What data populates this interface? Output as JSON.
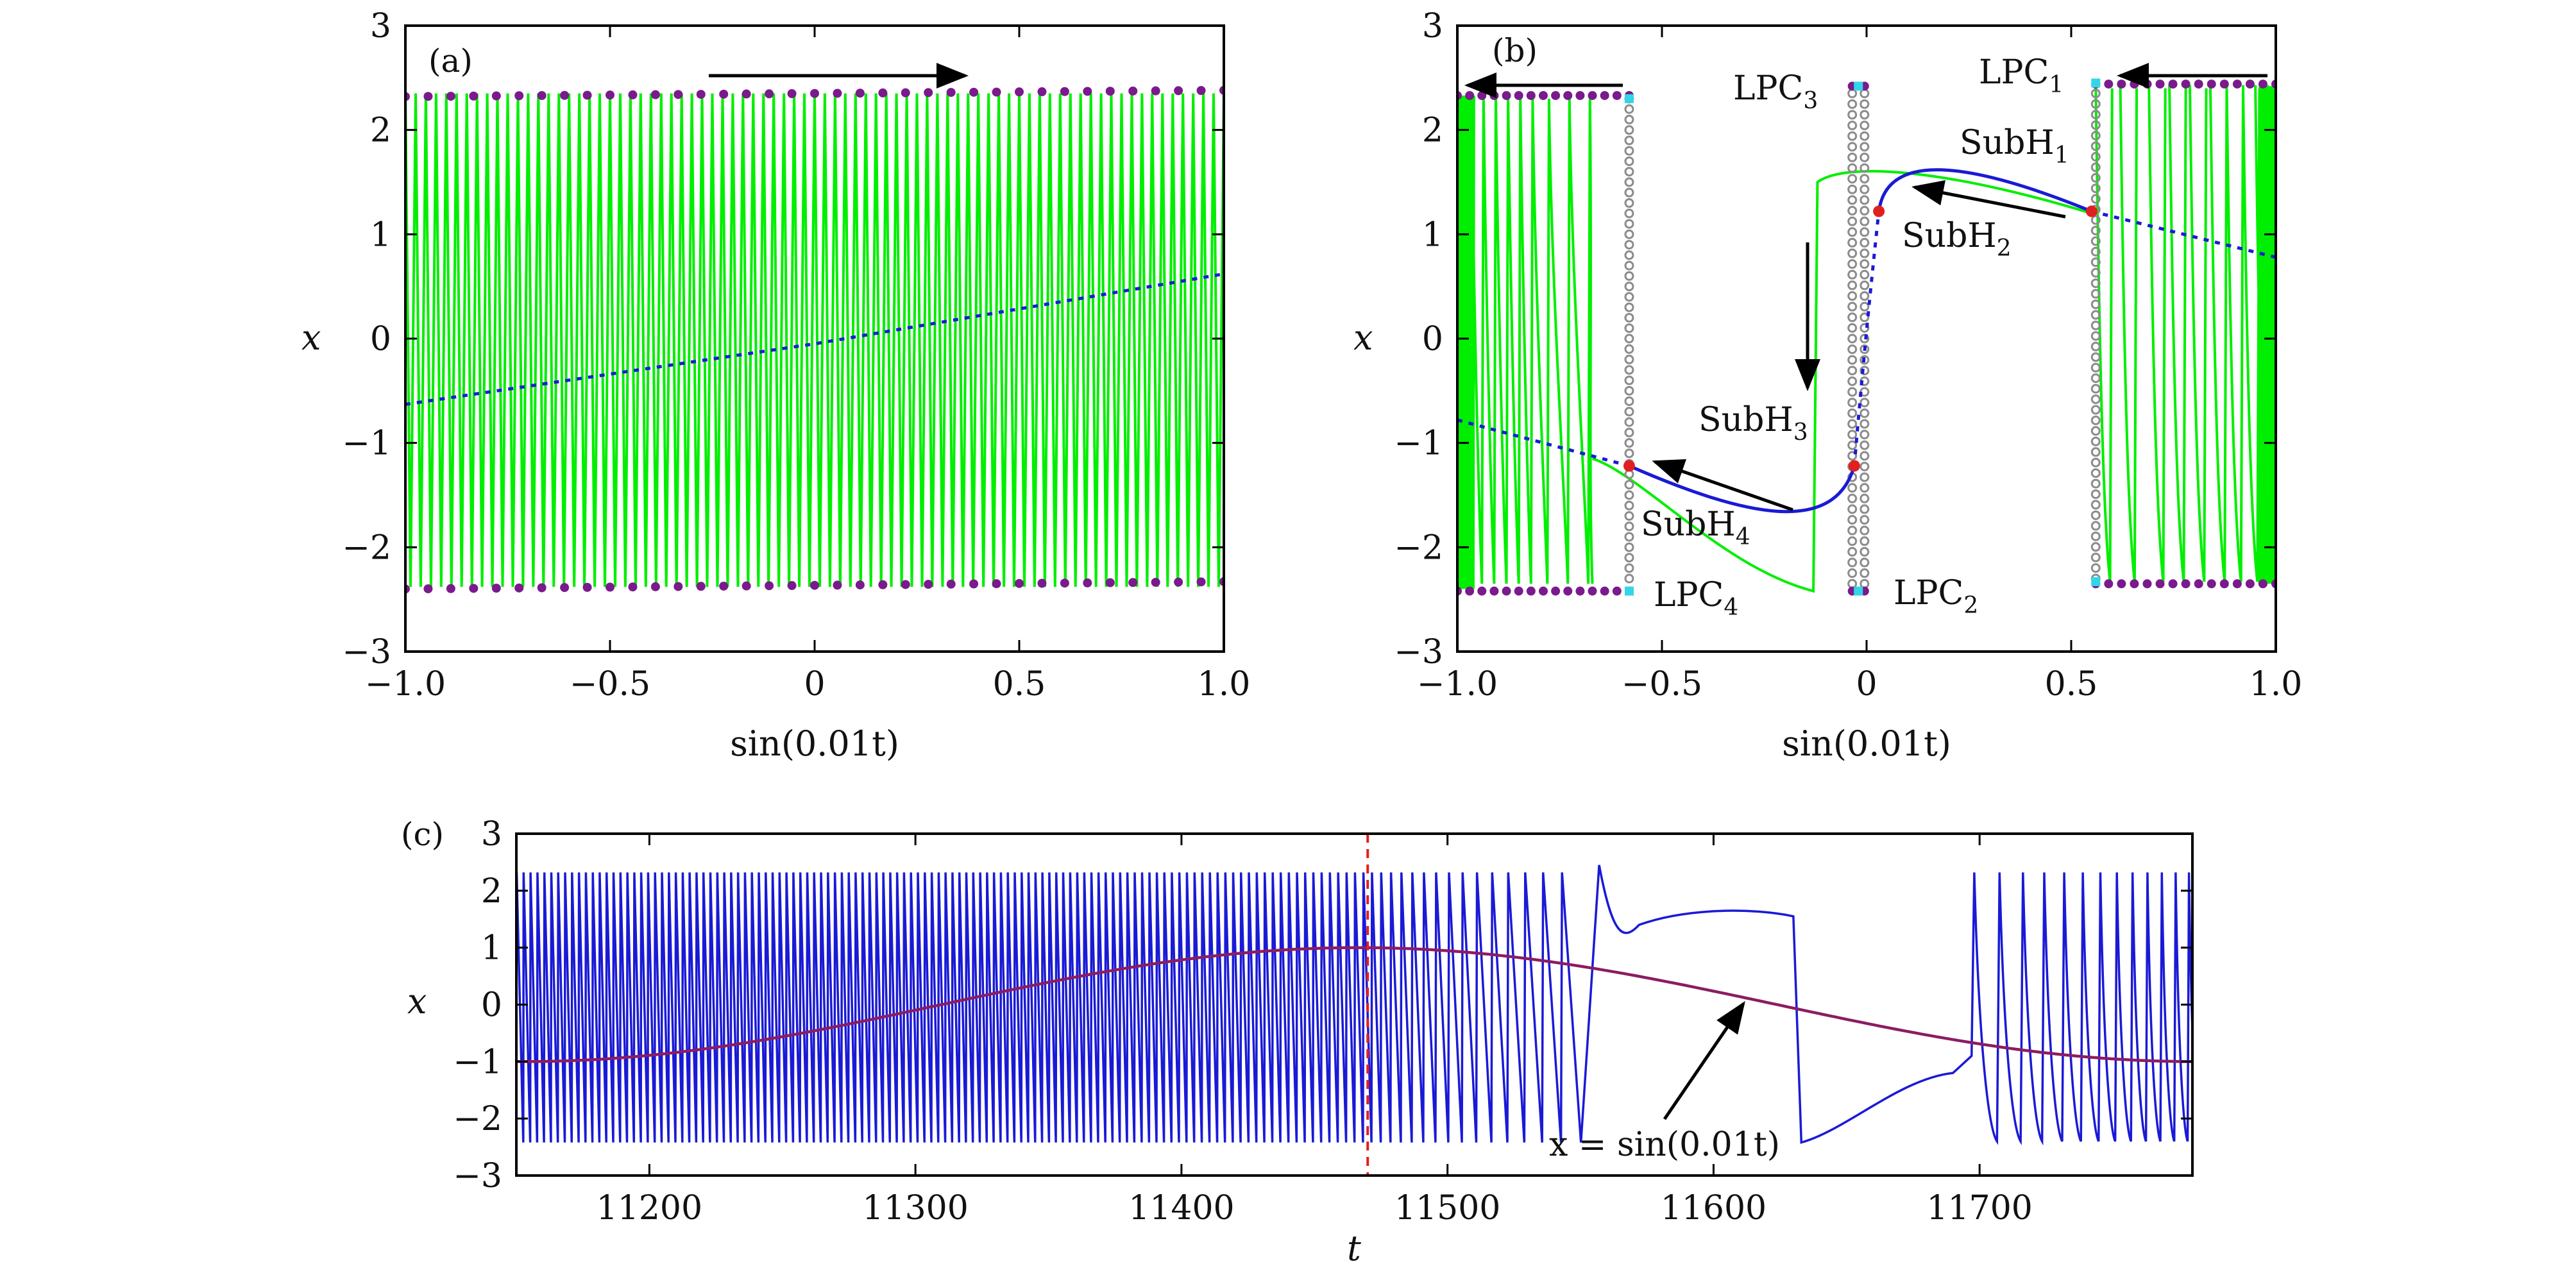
{
  "chart_data": [
    {
      "panel": "(a)",
      "type": "line",
      "xlabel": "sin(0.01t)",
      "ylabel": "x",
      "xlim": [
        -1.0,
        1.0
      ],
      "ylim": [
        -3,
        3
      ],
      "xticks": [
        "−1.0",
        "−0.5",
        "0",
        "0.5",
        "1.0"
      ],
      "yticks": [
        "3",
        "2",
        "1",
        "0",
        "−1",
        "−2",
        "−3"
      ],
      "series": [
        {
          "kind": "oscillation",
          "color": "#00ee00",
          "x_range": [
            -1.0,
            1.0
          ],
          "amplitude_upper": 2.35,
          "amplitude_lower": -2.38,
          "cycles": 80
        },
        {
          "kind": "unstable-equilibrium",
          "color": "#1a1ad6",
          "style": "dotted",
          "x": [
            -1.0,
            0.0,
            1.0
          ],
          "y": [
            -0.63,
            -0.05,
            0.62
          ]
        },
        {
          "kind": "envelope-max",
          "color": "#7a1a8c",
          "marker": "dot",
          "x_range": [
            -1.0,
            1.0
          ],
          "y": [
            2.32,
            2.4
          ]
        },
        {
          "kind": "envelope-min",
          "color": "#7a1a8c",
          "marker": "dot",
          "x_range": [
            -1.0,
            1.0
          ],
          "y": [
            -2.4,
            -2.32
          ]
        }
      ],
      "annotations": [
        {
          "type": "arrow",
          "from": [
            -0.25,
            2.5
          ],
          "to": [
            0.38,
            2.5
          ],
          "direction": "right"
        }
      ]
    },
    {
      "panel": "(b)",
      "type": "line",
      "xlabel": "sin(0.01t)",
      "ylabel": "x",
      "xlim": [
        -1.0,
        1.0
      ],
      "ylim": [
        -3,
        3
      ],
      "xticks": [
        "−1.0",
        "−0.5",
        "0",
        "0.5",
        "1.0"
      ],
      "yticks": [
        "3",
        "2",
        "1",
        "0",
        "−1",
        "−2",
        "−3"
      ],
      "bifurcation_points": {
        "LPC1": [
          0.56,
          2.45
        ],
        "LPC2": [
          -0.02,
          -2.42
        ],
        "LPC3": [
          -0.02,
          2.42
        ],
        "LPC4": [
          -0.58,
          -2.42
        ],
        "SubH1": [
          0.55,
          1.22
        ],
        "SubH2": [
          0.03,
          1.22
        ],
        "SubH3": [
          -0.03,
          -1.22
        ],
        "SubH4": [
          -0.58,
          -1.22
        ]
      },
      "series": [
        {
          "kind": "oscillation-left",
          "color": "#00ee00",
          "x_range": [
            -1.0,
            -0.68
          ]
        },
        {
          "kind": "oscillation-right",
          "color": "#00ee00",
          "x_range": [
            0.56,
            1.0
          ]
        },
        {
          "kind": "stable-equilibrium",
          "color": "#1a1ad6",
          "style": "solid"
        },
        {
          "kind": "unstable-equilibrium",
          "color": "#1a1ad6",
          "style": "dotted"
        },
        {
          "kind": "unstable-cycles",
          "color": "#8c8c8c",
          "marker": "open-circle"
        },
        {
          "kind": "stable-cycle-extrema",
          "color": "#7a1a8c",
          "marker": "dot"
        }
      ],
      "labels": {
        "LPC1": {
          "main": "LPC",
          "sub": "1"
        },
        "LPC2": {
          "main": "LPC",
          "sub": "2"
        },
        "LPC3": {
          "main": "LPC",
          "sub": "3"
        },
        "LPC4": {
          "main": "LPC",
          "sub": "4"
        },
        "SubH1": {
          "main": "SubH",
          "sub": "1"
        },
        "SubH2": {
          "main": "SubH",
          "sub": "2"
        },
        "SubH3": {
          "main": "SubH",
          "sub": "3"
        },
        "SubH4": {
          "main": "SubH",
          "sub": "4"
        }
      }
    },
    {
      "panel": "(c)",
      "type": "line",
      "xlabel": "t",
      "ylabel": "x",
      "xlim": [
        11150,
        11780
      ],
      "ylim": [
        -3,
        3
      ],
      "xticks": [
        "11200",
        "11300",
        "11400",
        "11500",
        "11600",
        "11700"
      ],
      "yticks": [
        "3",
        "2",
        "1",
        "0",
        "−1",
        "−2",
        "−3"
      ],
      "series": [
        {
          "kind": "x(t)",
          "color": "#1a1ad6"
        },
        {
          "kind": "forcing",
          "name": "x = sin(0.01t)",
          "color": "#8b1c62",
          "formula": "sin(0.01t)"
        }
      ],
      "vline": {
        "x": 11470,
        "color": "#e02020",
        "style": "dashed"
      },
      "annotation": {
        "text": "x = sin(0.01t)",
        "points_to": [
          11620,
          0.05
        ]
      }
    }
  ],
  "colors": {
    "green": "#00ee00",
    "blue": "#1a1ad6",
    "purple": "#7a1a8c",
    "gray": "#8c8c8c",
    "cyan": "#33d6e6",
    "red": "#e02020",
    "forcing": "#8b1c62"
  },
  "text": {
    "a_tag": "(a)",
    "b_tag": "(b)",
    "c_tag": "(c)",
    "a_xlabel": "sin(0.01t)",
    "b_xlabel": "sin(0.01t)",
    "ylabel": "x",
    "c_xlabel": "t",
    "c_annot": "x = sin(0.01t)"
  }
}
